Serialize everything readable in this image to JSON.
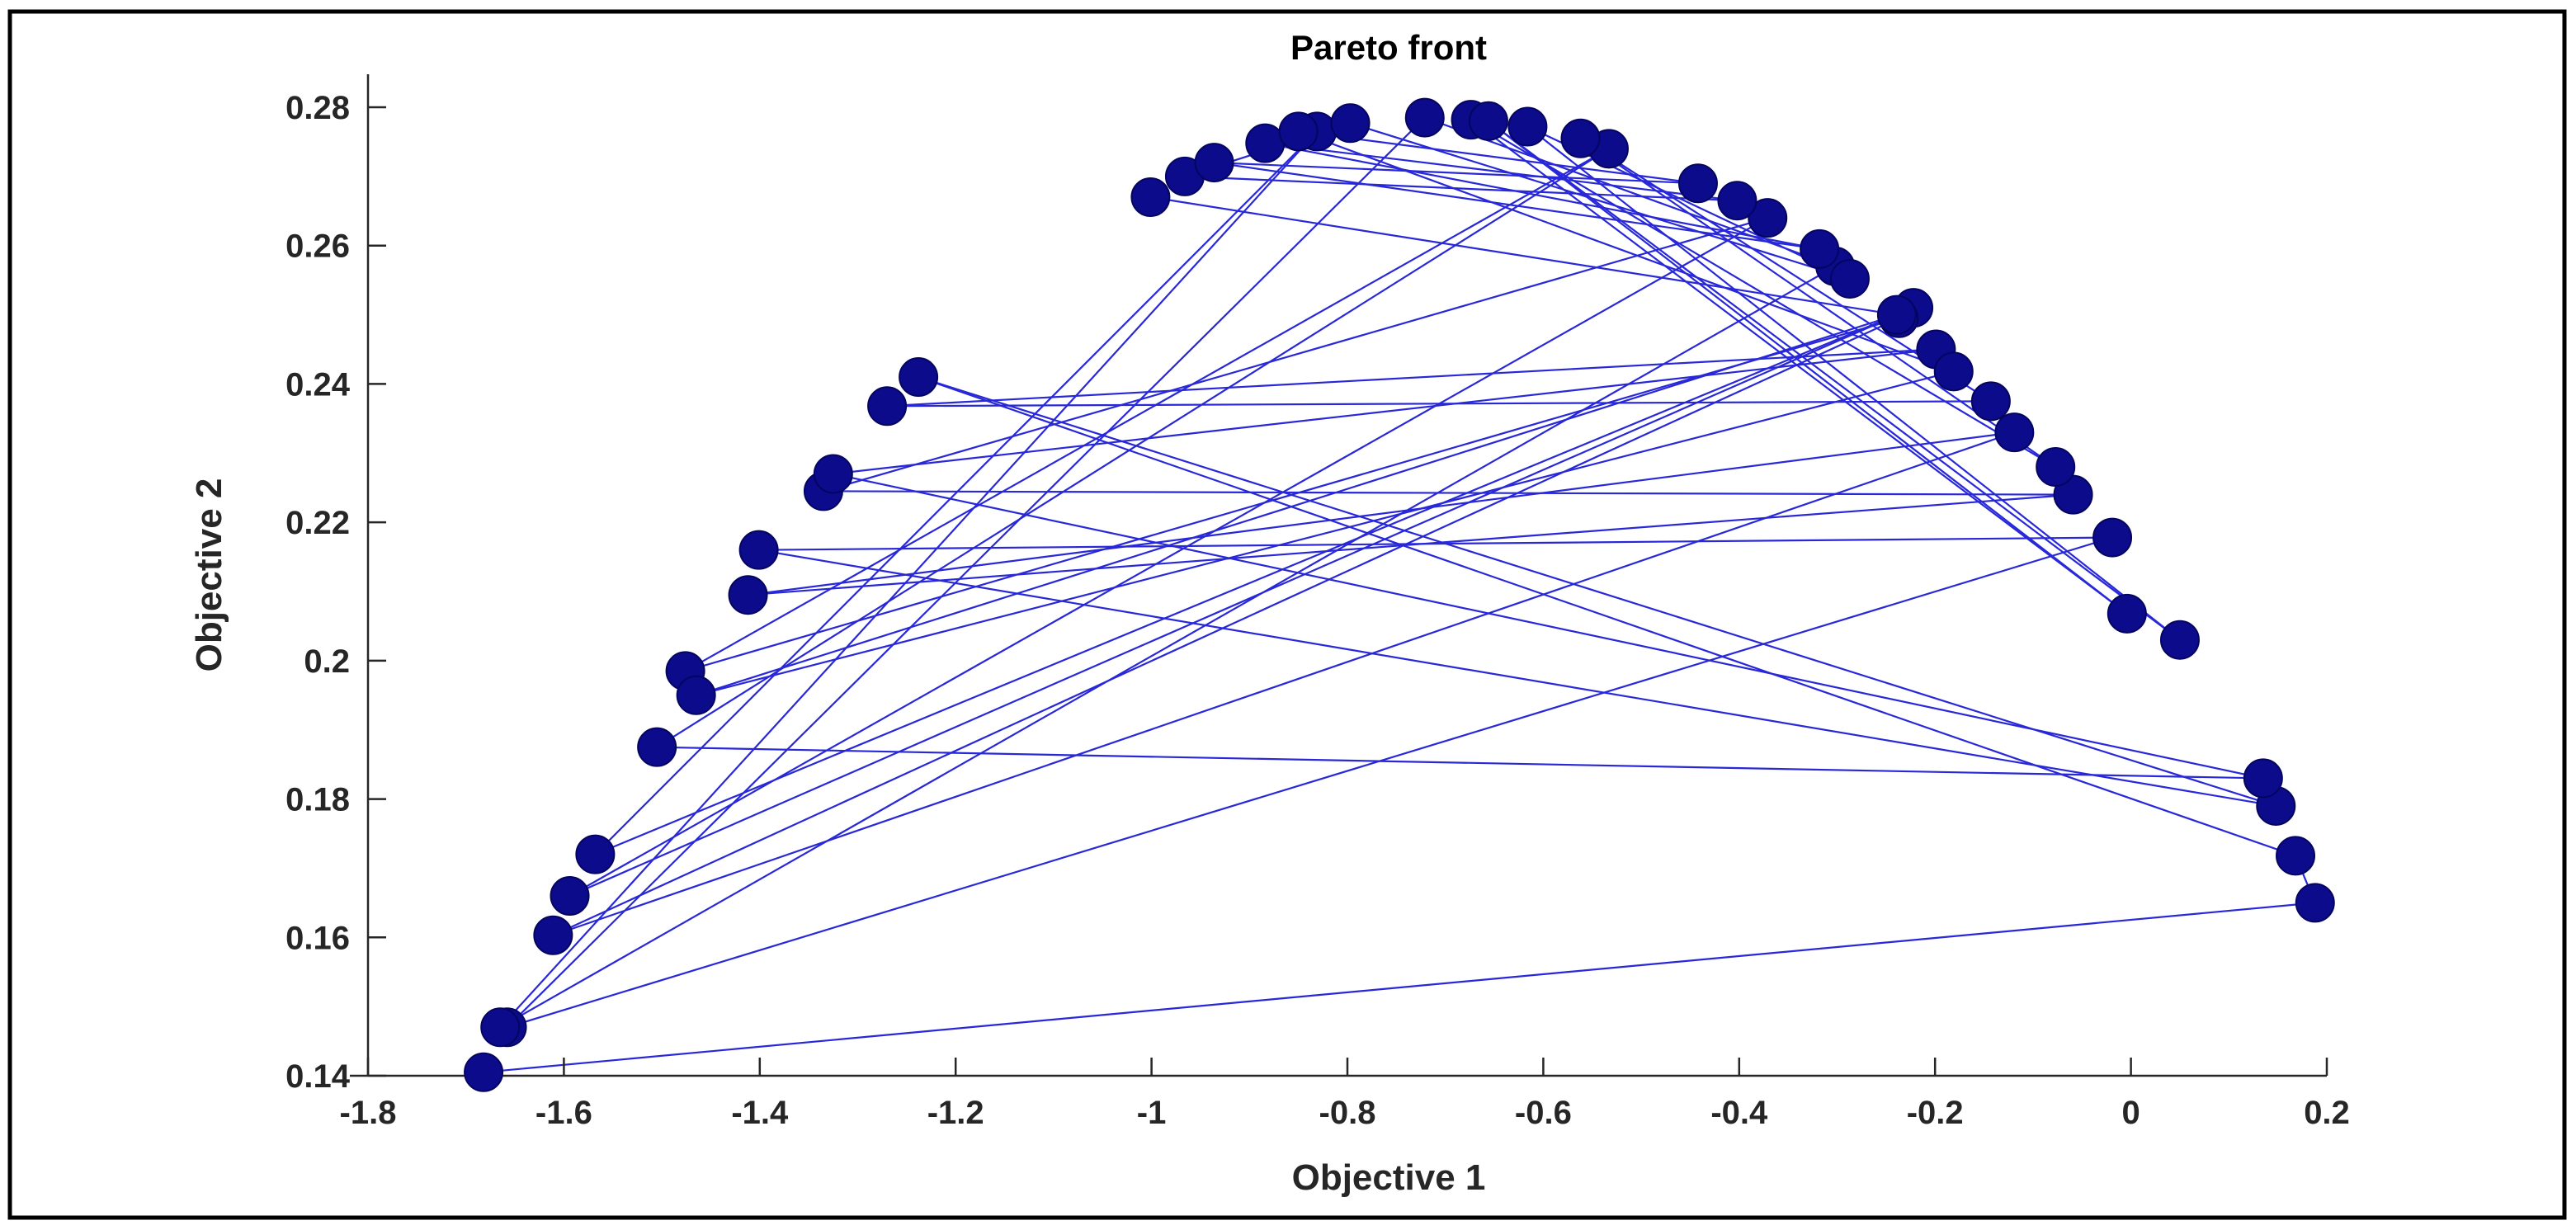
{
  "chart_data": {
    "type": "scatter",
    "title": "Pareto front",
    "xlabel": "Objective 1",
    "ylabel": "Objective 2",
    "xlim": [
      -1.8,
      0.2
    ],
    "ylim": [
      0.14,
      0.28
    ],
    "xticks": [
      -1.8,
      -1.6,
      -1.4,
      -1.2,
      -1,
      -0.8,
      -0.6,
      -0.4,
      -0.2,
      0,
      0.2
    ],
    "xtick_labels": [
      "-1.8",
      "-1.6",
      "-1.4",
      "-1.2",
      "-1",
      "-0.8",
      "-0.6",
      "-0.4",
      "-0.2",
      "0",
      "0.2"
    ],
    "yticks": [
      0.14,
      0.16,
      0.18,
      0.2,
      0.22,
      0.24,
      0.26,
      0.28
    ],
    "ytick_labels": [
      "0.14",
      "0.16",
      "0.18",
      "0.2",
      "0.22",
      "0.24",
      "0.26",
      "0.28"
    ],
    "grid": false,
    "marker_color": "#0b0b8c",
    "line_color": "#2828d8",
    "series": [
      {
        "x": [
          -1.682,
          0.188,
          0.168,
          -1.238,
          0.148,
          -1.401,
          -0.019,
          -1.658,
          -0.721,
          -0.302,
          -1.665,
          -0.831,
          -1.568,
          -0.222,
          -1.594,
          -0.371,
          -1.335,
          -0.059,
          -1.412,
          -0.119,
          -1.611,
          -0.237,
          -1.476,
          -0.533,
          -1.505,
          0.135,
          -1.325,
          -0.199,
          -1.27,
          -0.143,
          -0.562,
          -0.077,
          -0.674,
          -0.004,
          -0.656,
          0.05,
          -0.616,
          -0.287,
          -0.797,
          -0.966,
          -0.402,
          -0.884,
          -0.318,
          -0.936,
          -0.442,
          -0.85,
          -0.181,
          -1.465,
          -0.239,
          -1.001
        ],
        "y": [
          0.1405,
          0.165,
          0.1718,
          0.241,
          0.179,
          0.216,
          0.2178,
          0.147,
          0.2785,
          0.257,
          0.147,
          0.2765,
          0.172,
          0.251,
          0.166,
          0.264,
          0.2245,
          0.224,
          0.2095,
          0.233,
          0.1603,
          0.2495,
          0.1985,
          0.274,
          0.1875,
          0.183,
          0.227,
          0.245,
          0.2368,
          0.2375,
          0.2755,
          0.228,
          0.2782,
          0.2068,
          0.278,
          0.203,
          0.2772,
          0.2552,
          0.2777,
          0.27,
          0.2665,
          0.2748,
          0.2595,
          0.272,
          0.269,
          0.2765,
          0.2418,
          0.195,
          0.25,
          0.267
        ]
      }
    ]
  }
}
